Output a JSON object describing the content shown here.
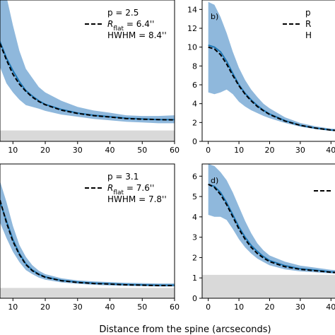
{
  "figure": {
    "xlabel": "Distance from the spine (arcseconds)"
  },
  "chart_data": [
    {
      "type": "line",
      "panel": "top-left",
      "panel_label": "",
      "xlim": [
        6,
        60
      ],
      "ylim": [
        0.6,
        4.5
      ],
      "xticks": [
        10,
        20,
        30,
        40,
        50,
        60
      ],
      "xtick_labels": [
        "10",
        "20",
        "30",
        "40",
        "50",
        "60"
      ],
      "yticks": [],
      "ytick_labels": [],
      "noise_band": [
        0.6,
        0.9
      ],
      "legend": {
        "placement": "top-right",
        "lines": [
          "p = 2.5",
          "R_flat = 6.4''",
          "HWHM = 8.4''"
        ]
      },
      "series": [
        {
          "x": [
            6,
            8,
            10,
            12,
            14,
            16,
            18,
            20,
            25,
            30,
            35,
            40,
            45,
            50,
            55,
            60
          ],
          "y": [
            3.35,
            2.9,
            2.55,
            2.25,
            2.0,
            1.85,
            1.72,
            1.62,
            1.48,
            1.38,
            1.32,
            1.28,
            1.24,
            1.22,
            1.2,
            1.2
          ],
          "lower": [
            2.65,
            2.2,
            1.95,
            1.75,
            1.6,
            1.55,
            1.5,
            1.44,
            1.34,
            1.28,
            1.22,
            1.18,
            1.14,
            1.12,
            1.1,
            1.1
          ],
          "upper": [
            5.0,
            4.6,
            3.8,
            3.1,
            2.6,
            2.35,
            2.1,
            1.95,
            1.72,
            1.55,
            1.45,
            1.39,
            1.32,
            1.3,
            1.3,
            1.32
          ]
        },
        {
          "x": [
            6,
            8,
            10,
            12,
            14,
            16,
            18,
            20,
            25,
            30,
            35,
            40,
            45,
            50,
            55,
            60
          ],
          "y": [
            3.3,
            2.85,
            2.45,
            2.18,
            1.98,
            1.82,
            1.7,
            1.61,
            1.46,
            1.37,
            1.31,
            1.27,
            1.23,
            1.21,
            1.2,
            1.19
          ]
        }
      ]
    },
    {
      "type": "line",
      "panel": "top-right",
      "panel_label": "b)",
      "xlim": [
        -2,
        45
      ],
      "ylim": [
        0,
        15
      ],
      "xticks": [
        0,
        10,
        20,
        30,
        40
      ],
      "xtick_labels": [
        "0",
        "10",
        "20",
        "30",
        "40"
      ],
      "yticks": [
        0,
        2,
        4,
        6,
        8,
        10,
        12,
        14
      ],
      "ytick_labels": [
        "0",
        "2",
        "4",
        "6",
        "8",
        "10",
        "12",
        "14"
      ],
      "legend": {
        "placement": "top-right",
        "lines": [
          "p",
          "R",
          "H"
        ]
      },
      "series": [
        {
          "x": [
            0,
            2,
            4,
            6,
            8,
            10,
            12,
            14,
            16,
            18,
            20,
            25,
            30,
            35,
            40,
            45
          ],
          "y": [
            10.2,
            10.0,
            9.5,
            8.5,
            7.2,
            6.0,
            5.1,
            4.4,
            3.8,
            3.3,
            2.9,
            2.2,
            1.7,
            1.4,
            1.2,
            1.1
          ],
          "lower": [
            5.2,
            5.0,
            5.2,
            5.5,
            5.0,
            4.2,
            3.7,
            3.3,
            3.0,
            2.7,
            2.45,
            1.95,
            1.55,
            1.3,
            1.1,
            1.0
          ],
          "upper": [
            14.8,
            14.5,
            13.2,
            11.5,
            9.5,
            7.8,
            6.5,
            5.5,
            4.7,
            4.0,
            3.5,
            2.55,
            1.95,
            1.6,
            1.35,
            1.25
          ]
        },
        {
          "x": [
            0,
            2,
            4,
            6,
            8,
            10,
            12,
            14,
            16,
            18,
            20,
            25,
            30,
            35,
            40,
            45
          ],
          "y": [
            10.0,
            9.8,
            9.2,
            8.2,
            7.0,
            5.9,
            5.0,
            4.3,
            3.7,
            3.25,
            2.85,
            2.15,
            1.7,
            1.4,
            1.2,
            1.05
          ]
        }
      ]
    },
    {
      "type": "line",
      "panel": "bottom-left",
      "panel_label": "",
      "xlim": [
        6,
        60
      ],
      "ylim": [
        0.6,
        4.5
      ],
      "xticks": [
        10,
        20,
        30,
        40,
        50,
        60
      ],
      "xtick_labels": [
        "10",
        "20",
        "30",
        "40",
        "50",
        "60"
      ],
      "yticks": [],
      "ytick_labels": [],
      "noise_band": [
        0.6,
        0.9
      ],
      "legend": {
        "placement": "top-right",
        "lines": [
          "p = 3.1",
          "R_flat = 7.6''",
          "HWHM = 7.8''"
        ]
      },
      "series": [
        {
          "x": [
            6,
            8,
            10,
            12,
            14,
            16,
            18,
            20,
            25,
            30,
            35,
            40,
            45,
            50,
            55,
            60
          ],
          "y": [
            3.4,
            2.85,
            2.3,
            1.9,
            1.6,
            1.42,
            1.3,
            1.22,
            1.12,
            1.07,
            1.04,
            1.02,
            1.0,
            0.99,
            0.98,
            0.98
          ],
          "lower": [
            2.8,
            2.35,
            1.95,
            1.65,
            1.42,
            1.3,
            1.2,
            1.14,
            1.06,
            1.02,
            0.99,
            0.97,
            0.96,
            0.95,
            0.94,
            0.94
          ],
          "upper": [
            4.0,
            3.4,
            2.7,
            2.15,
            1.8,
            1.56,
            1.4,
            1.3,
            1.18,
            1.12,
            1.09,
            1.07,
            1.05,
            1.04,
            1.03,
            1.03
          ]
        },
        {
          "x": [
            6,
            8,
            10,
            12,
            14,
            16,
            18,
            20,
            25,
            30,
            35,
            40,
            45,
            50,
            55,
            60
          ],
          "y": [
            3.45,
            2.8,
            2.25,
            1.87,
            1.58,
            1.4,
            1.29,
            1.21,
            1.11,
            1.06,
            1.03,
            1.01,
            0.99,
            0.98,
            0.97,
            0.97
          ]
        }
      ]
    },
    {
      "type": "line",
      "panel": "bottom-right",
      "panel_label": "d)",
      "xlim": [
        -2,
        45
      ],
      "ylim": [
        0,
        6.6
      ],
      "xticks": [
        0,
        10,
        20,
        30,
        40
      ],
      "xtick_labels": [
        "0",
        "10",
        "20",
        "30",
        "40"
      ],
      "yticks": [
        0,
        1,
        2,
        3,
        4,
        5,
        6
      ],
      "ytick_labels": [
        "0",
        "1",
        "2",
        "3",
        "4",
        "5",
        "6"
      ],
      "noise_band": [
        0,
        1.15
      ],
      "legend": {
        "placement": "top-right",
        "lines": []
      },
      "series": [
        {
          "x": [
            0,
            2,
            4,
            6,
            8,
            10,
            12,
            14,
            16,
            18,
            20,
            25,
            30,
            35,
            40,
            45
          ],
          "y": [
            5.6,
            5.5,
            5.2,
            4.7,
            4.1,
            3.5,
            3.0,
            2.6,
            2.3,
            2.05,
            1.85,
            1.6,
            1.45,
            1.38,
            1.3,
            1.25
          ],
          "lower": [
            4.1,
            4.0,
            4.0,
            3.85,
            3.4,
            2.9,
            2.5,
            2.2,
            1.95,
            1.78,
            1.62,
            1.42,
            1.32,
            1.27,
            1.22,
            1.18
          ],
          "upper": [
            6.6,
            6.5,
            6.2,
            5.8,
            5.2,
            4.5,
            3.8,
            3.2,
            2.7,
            2.35,
            2.1,
            1.8,
            1.6,
            1.5,
            1.4,
            1.35
          ]
        },
        {
          "x": [
            0,
            2,
            4,
            6,
            8,
            10,
            12,
            14,
            16,
            18,
            20,
            25,
            30,
            35,
            40,
            45
          ],
          "y": [
            5.6,
            5.45,
            5.1,
            4.6,
            4.0,
            3.4,
            2.9,
            2.5,
            2.2,
            1.98,
            1.8,
            1.55,
            1.42,
            1.35,
            1.28,
            1.24
          ]
        }
      ]
    }
  ],
  "colors": {
    "band": "#8fb8dc",
    "profile": "#1f77b4",
    "model": "#000000",
    "noise": "#d9d9d9"
  }
}
